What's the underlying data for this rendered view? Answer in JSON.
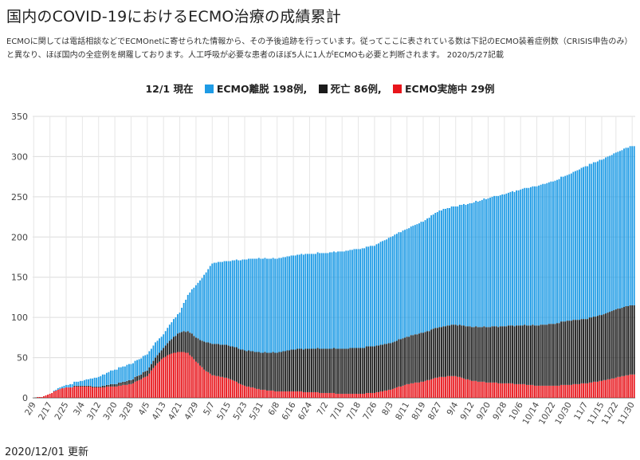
{
  "title": "国内のCOVID-19におけるECMO治療の成績累計",
  "description": "ECMOに関しては電話相談などでECMOnetに寄せられた情報から、その予後追跡を行っています。従ってここに表されている数は下記のECMO装着症例数（CRISIS申告のみ）と異なり、ほぼ国内の全症例を網羅しております。人工呼吸が必要な患者のほぼ5人に1人がECMOも必要と判断されます。 2020/5/27記載",
  "legend_date": "12/1 現在",
  "legend": [
    {
      "label": "ECMO離脱 198例,",
      "color": "#1e9be5"
    },
    {
      "label": "死亡 86例,",
      "color": "#1a1a1a"
    },
    {
      "label": "ECMO実施中 29例",
      "color": "#e8151b"
    }
  ],
  "footer": "2020/12/01 更新",
  "chart_data": {
    "type": "bar",
    "stacked": true,
    "x_start": "2020-02-09",
    "x_end": "2020-12-01",
    "xticks": [
      "2/9",
      "2/17",
      "2/25",
      "3/4",
      "3/12",
      "3/20",
      "3/28",
      "4/5",
      "4/13",
      "4/21",
      "4/29",
      "5/7",
      "5/15",
      "5/23",
      "5/31",
      "6/8",
      "6/16",
      "6/24",
      "7/2",
      "7/10",
      "7/18",
      "7/26",
      "8/3",
      "8/11",
      "8/19",
      "8/27",
      "9/4",
      "9/12",
      "9/20",
      "9/28",
      "10/6",
      "10/14",
      "10/22",
      "10/30",
      "11/7",
      "11/15",
      "11/22",
      "11/30"
    ],
    "ylim": [
      0,
      350
    ],
    "yticks": [
      0,
      50,
      100,
      150,
      200,
      250,
      300,
      350
    ],
    "grid": true,
    "series": [
      {
        "name": "ECMO実施中",
        "color": "#e8151b",
        "points": [
          [
            "2/9",
            0
          ],
          [
            "2/13",
            1
          ],
          [
            "2/17",
            5
          ],
          [
            "2/21",
            10
          ],
          [
            "2/25",
            13
          ],
          [
            "3/4",
            14
          ],
          [
            "3/12",
            13
          ],
          [
            "3/20",
            14
          ],
          [
            "3/28",
            17
          ],
          [
            "4/5",
            27
          ],
          [
            "4/9",
            40
          ],
          [
            "4/13",
            50
          ],
          [
            "4/17",
            55
          ],
          [
            "4/21",
            57
          ],
          [
            "4/25",
            56
          ],
          [
            "4/29",
            45
          ],
          [
            "5/3",
            35
          ],
          [
            "5/7",
            28
          ],
          [
            "5/15",
            24
          ],
          [
            "5/23",
            15
          ],
          [
            "5/31",
            10
          ],
          [
            "6/8",
            8
          ],
          [
            "6/16",
            8
          ],
          [
            "6/24",
            7
          ],
          [
            "7/2",
            6
          ],
          [
            "7/10",
            5
          ],
          [
            "7/18",
            5
          ],
          [
            "7/26",
            6
          ],
          [
            "8/3",
            10
          ],
          [
            "8/11",
            17
          ],
          [
            "8/19",
            20
          ],
          [
            "8/27",
            26
          ],
          [
            "9/4",
            27
          ],
          [
            "9/12",
            21
          ],
          [
            "9/20",
            19
          ],
          [
            "9/28",
            18
          ],
          [
            "10/6",
            17
          ],
          [
            "10/14",
            15
          ],
          [
            "10/22",
            15
          ],
          [
            "10/30",
            16
          ],
          [
            "11/7",
            18
          ],
          [
            "11/15",
            21
          ],
          [
            "11/22",
            25
          ],
          [
            "11/30",
            29
          ]
        ]
      },
      {
        "name": "死亡",
        "color": "#1a1a1a",
        "points": [
          [
            "2/9",
            0
          ],
          [
            "2/17",
            0
          ],
          [
            "2/25",
            0
          ],
          [
            "3/4",
            1
          ],
          [
            "3/12",
            1
          ],
          [
            "3/20",
            3
          ],
          [
            "3/28",
            5
          ],
          [
            "4/5",
            7
          ],
          [
            "4/13",
            12
          ],
          [
            "4/21",
            24
          ],
          [
            "4/29",
            30
          ],
          [
            "5/7",
            39
          ],
          [
            "5/15",
            41
          ],
          [
            "5/23",
            44
          ],
          [
            "5/31",
            46
          ],
          [
            "6/8",
            48
          ],
          [
            "6/16",
            52
          ],
          [
            "6/24",
            54
          ],
          [
            "7/2",
            55
          ],
          [
            "7/10",
            56
          ],
          [
            "7/18",
            57
          ],
          [
            "7/26",
            58
          ],
          [
            "8/3",
            58
          ],
          [
            "8/11",
            59
          ],
          [
            "8/19",
            61
          ],
          [
            "8/27",
            62
          ],
          [
            "9/4",
            64
          ],
          [
            "9/12",
            67
          ],
          [
            "9/20",
            69
          ],
          [
            "9/28",
            71
          ],
          [
            "10/6",
            73
          ],
          [
            "10/14",
            75
          ],
          [
            "10/22",
            77
          ],
          [
            "10/30",
            80
          ],
          [
            "11/7",
            80
          ],
          [
            "11/15",
            82
          ],
          [
            "11/22",
            85
          ],
          [
            "11/30",
            86
          ]
        ]
      },
      {
        "name": "ECMO離脱",
        "color": "#1e9be5",
        "points": [
          [
            "2/9",
            0
          ],
          [
            "2/17",
            0
          ],
          [
            "2/25",
            3
          ],
          [
            "3/4",
            6
          ],
          [
            "3/12",
            12
          ],
          [
            "3/20",
            18
          ],
          [
            "3/28",
            20
          ],
          [
            "4/5",
            20
          ],
          [
            "4/13",
            17
          ],
          [
            "4/21",
            25
          ],
          [
            "4/29",
            65
          ],
          [
            "5/7",
            100
          ],
          [
            "5/15",
            105
          ],
          [
            "5/23",
            113
          ],
          [
            "5/31",
            117
          ],
          [
            "6/8",
            117
          ],
          [
            "6/16",
            117
          ],
          [
            "6/24",
            118
          ],
          [
            "7/2",
            119
          ],
          [
            "7/10",
            121
          ],
          [
            "7/18",
            123
          ],
          [
            "7/26",
            125
          ],
          [
            "8/3",
            132
          ],
          [
            "8/11",
            134
          ],
          [
            "8/19",
            138
          ],
          [
            "8/27",
            145
          ],
          [
            "9/4",
            147
          ],
          [
            "9/12",
            154
          ],
          [
            "9/20",
            160
          ],
          [
            "9/28",
            164
          ],
          [
            "10/6",
            169
          ],
          [
            "10/14",
            173
          ],
          [
            "10/22",
            177
          ],
          [
            "10/30",
            182
          ],
          [
            "11/7",
            190
          ],
          [
            "11/15",
            193
          ],
          [
            "11/22",
            195
          ],
          [
            "11/30",
            198
          ]
        ]
      }
    ]
  }
}
